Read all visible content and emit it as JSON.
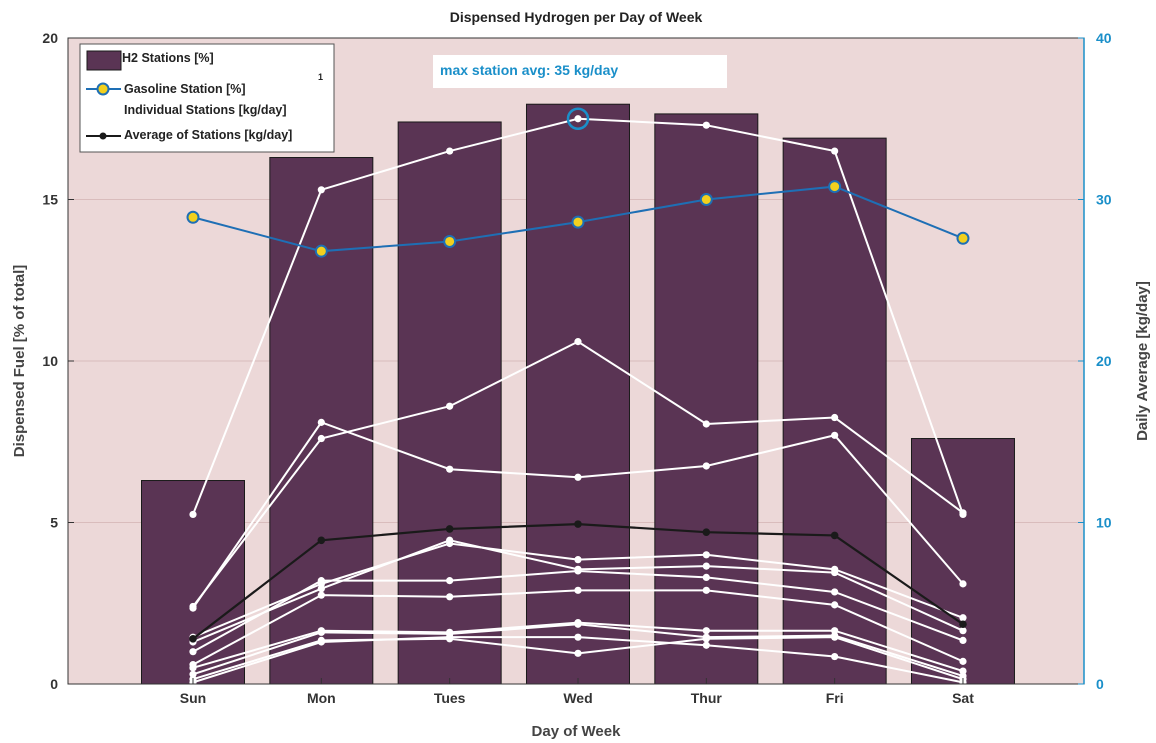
{
  "chart_data": {
    "type": "bar",
    "title": "Dispensed Hydrogen per Day of Week",
    "xlabel": "Day of Week",
    "ylabel": "Dispensed Fuel [% of total]",
    "ylabel_right": "Daily Average [kg/day]",
    "categories": [
      "Sun",
      "Mon",
      "Tues",
      "Wed",
      "Thur",
      "Fri",
      "Sat"
    ],
    "ylim": [
      0,
      20
    ],
    "ylim_right": [
      0,
      40
    ],
    "yticks": [
      0,
      5,
      10,
      15,
      20
    ],
    "yticks_right": [
      0,
      10,
      20,
      30,
      40
    ],
    "grid": true,
    "legend_position": "top-left",
    "colors": {
      "background": "#ecd8d8",
      "bar": "#5a3454",
      "gasoline": "#1e6fb5",
      "gasoline_marker": "#f2d01e",
      "individual": "#ffffff",
      "average": "#1a1a1a",
      "right_axis": "#1a8fc9"
    },
    "series": [
      {
        "name": "H2 Stations [%]",
        "type": "bar",
        "axis": "left",
        "values": [
          6.3,
          16.3,
          17.4,
          17.95,
          17.65,
          16.9,
          7.6
        ]
      },
      {
        "name": "Gasoline Station [%]",
        "type": "line",
        "axis": "left",
        "values": [
          14.45,
          13.4,
          13.7,
          14.3,
          15.0,
          15.4,
          13.8
        ]
      },
      {
        "name": "Individual Stations [kg/day]",
        "type": "line",
        "axis": "right",
        "lines": [
          [
            10.5,
            30.6,
            33.0,
            35.0,
            34.6,
            33.0,
            10.5
          ],
          [
            4.8,
            15.2,
            17.2,
            21.2,
            16.1,
            16.5,
            10.6
          ],
          [
            4.7,
            16.2,
            13.3,
            12.8,
            13.5,
            15.4,
            6.2
          ],
          [
            2.9,
            6.2,
            8.7,
            7.7,
            8.0,
            7.1,
            4.1
          ],
          [
            2.6,
            5.9,
            8.9,
            7.1,
            7.3,
            6.9,
            3.3
          ],
          [
            2.0,
            6.4,
            6.4,
            7.0,
            6.6,
            5.7,
            2.7
          ],
          [
            1.2,
            5.5,
            5.4,
            5.8,
            5.8,
            4.9,
            1.4
          ],
          [
            1.0,
            3.3,
            3.2,
            3.8,
            3.3,
            3.3,
            0.8
          ],
          [
            0.6,
            3.2,
            3.1,
            3.7,
            2.9,
            3.0,
            0.5
          ],
          [
            0.3,
            2.7,
            2.8,
            1.9,
            2.8,
            2.9,
            0.3
          ],
          [
            0.1,
            2.6,
            2.9,
            2.9,
            2.4,
            1.7,
            0.1
          ]
        ]
      },
      {
        "name": "Average of Stations [kg/day]",
        "type": "line",
        "axis": "right",
        "values": [
          2.8,
          8.9,
          9.6,
          9.9,
          9.4,
          9.2,
          3.7
        ]
      }
    ],
    "annotations": {
      "max_label": "max station avg: 35 kg/day",
      "max_point": {
        "category": "Wed",
        "value": 35
      },
      "footnote_marker": "1"
    }
  }
}
